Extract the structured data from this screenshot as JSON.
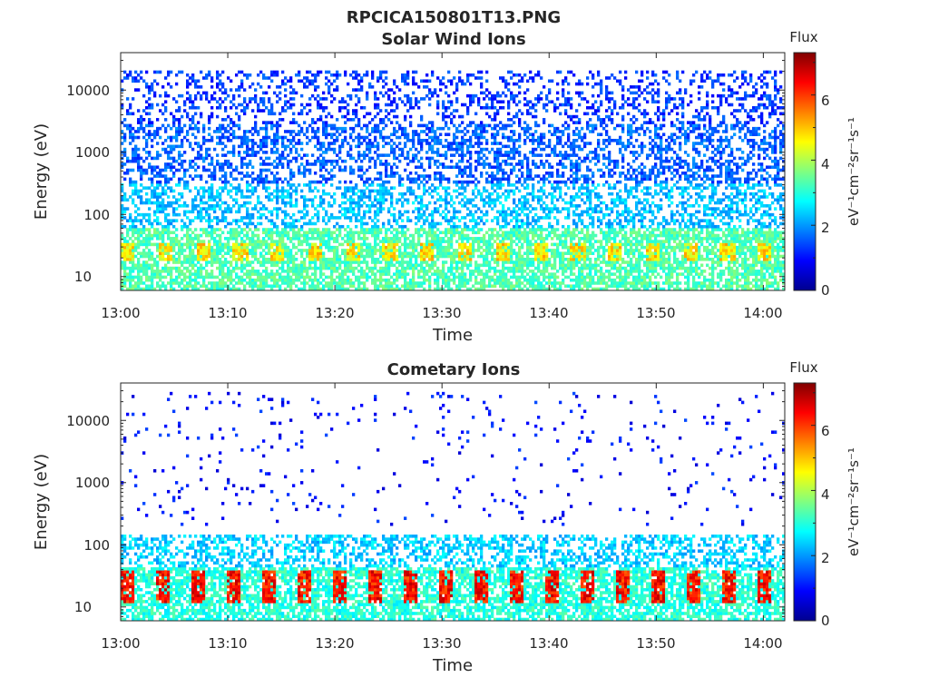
{
  "figure": {
    "title": "RPCICA150801T13.PNG"
  },
  "colormap": [
    "#00008f",
    "#0000ff",
    "#0080ff",
    "#00ffff",
    "#80ff80",
    "#ffff00",
    "#ff8000",
    "#ff0000",
    "#800000"
  ],
  "chart_data": [
    {
      "type": "heatmap",
      "title": "Solar Wind Ions",
      "xlabel": "Time",
      "ylabel": "Energy (eV)",
      "x_ticks": [
        "13:00",
        "13:10",
        "13:20",
        "13:30",
        "13:40",
        "13:50",
        "14:00"
      ],
      "xlim_minutes": [
        0,
        62
      ],
      "y_scale": "log",
      "y_ticks": [
        "10",
        "100",
        "1000",
        "10000"
      ],
      "ylim": [
        6,
        40000
      ],
      "colorbar": {
        "label": "Flux",
        "units": "eV⁻¹cm⁻²sr⁻¹s⁻¹",
        "ticks": [
          "0",
          "2",
          "4",
          "6"
        ],
        "range": [
          0,
          7.3
        ]
      },
      "description_bands": [
        {
          "energy_eV": [
            3000,
            20000
          ],
          "flux_level": 1.3,
          "density": "sparse"
        },
        {
          "energy_eV": [
            300,
            3000
          ],
          "flux_level": 1.6,
          "density": "moderate"
        },
        {
          "energy_eV": [
            60,
            300
          ],
          "flux_level": 2.3,
          "density": "moderate"
        },
        {
          "energy_eV": [
            6,
            60
          ],
          "flux_level": 3.3,
          "density": "dense"
        }
      ],
      "hot_spots": [
        {
          "energy_eV": [
            18,
            35
          ],
          "flux_level": 4.7,
          "period_minutes": 3.5
        }
      ]
    },
    {
      "type": "heatmap",
      "title": "Cometary Ions",
      "xlabel": "Time",
      "ylabel": "Energy (eV)",
      "x_ticks": [
        "13:00",
        "13:10",
        "13:20",
        "13:30",
        "13:40",
        "13:50",
        "14:00"
      ],
      "xlim_minutes": [
        0,
        62
      ],
      "y_scale": "log",
      "y_ticks": [
        "10",
        "100",
        "1000",
        "10000"
      ],
      "ylim": [
        6,
        40000
      ],
      "colorbar": {
        "label": "Flux",
        "units": "eV⁻¹cm⁻²sr⁻¹s⁻¹",
        "ticks": [
          "0",
          "2",
          "4",
          "6"
        ],
        "range": [
          0,
          7.3
        ]
      },
      "description_bands": [
        {
          "energy_eV": [
            200,
            30000
          ],
          "flux_level": 1.0,
          "density": "very sparse"
        },
        {
          "energy_eV": [
            45,
            140
          ],
          "flux_level": 2.4,
          "density": "moderate"
        },
        {
          "energy_eV": [
            6,
            45
          ],
          "flux_level": 3.0,
          "density": "dense"
        }
      ],
      "hot_spots": [
        {
          "energy_eV": [
            12,
            40
          ],
          "flux_level": 6.3,
          "period_minutes": 3.3
        }
      ]
    }
  ]
}
